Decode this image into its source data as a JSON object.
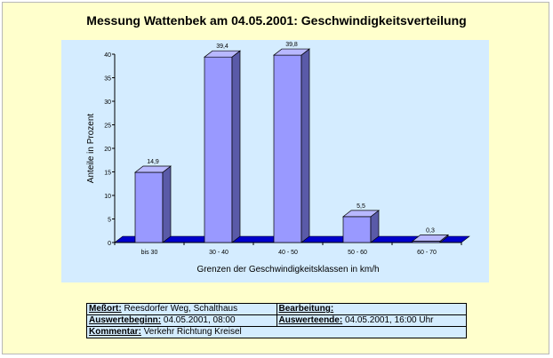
{
  "title": "Messung Wattenbek am 04.05.2001: Geschwindigkeitsverteilung",
  "colors": {
    "background": "#ffffcc",
    "plot_area": "#d4ecff",
    "bar_front": "#9999ff",
    "bar_side": "#5a5aa8",
    "bar_top": "#b8b8ff",
    "floor": "#0000cc"
  },
  "chart_data": {
    "type": "bar",
    "categories": [
      "bis 30",
      "30 - 40",
      "40 - 50",
      "50 - 60",
      "60 - 70"
    ],
    "values": [
      14.9,
      39.4,
      39.8,
      5.5,
      0.3
    ],
    "data_labels": [
      "14,9",
      "39,4",
      "39,8",
      "5,5",
      "0,3"
    ],
    "xlabel": "Grenzen der Geschwindigkeitsklassen in km/h",
    "ylabel": "Anteile in Prozent",
    "ylim": [
      0,
      40
    ],
    "yticks": [
      0,
      5,
      10,
      15,
      20,
      25,
      30,
      35,
      40
    ],
    "grid": false,
    "style": "3d"
  },
  "info": {
    "messort_label": "Meßort:",
    "messort_value": "Reesdorfer Weg, Schalthaus",
    "bearbeitung_label": "Bearbeitung:",
    "bearbeitung_value": "",
    "beginn_label": "Auswertebeginn:",
    "beginn_value": "04.05.2001, 08:00",
    "ende_label": "Auswerteende:",
    "ende_value": "04.05.2001, 16:00 Uhr",
    "kommentar_label": "Kommentar:",
    "kommentar_value": "Verkehr Richtung Kreisel"
  }
}
